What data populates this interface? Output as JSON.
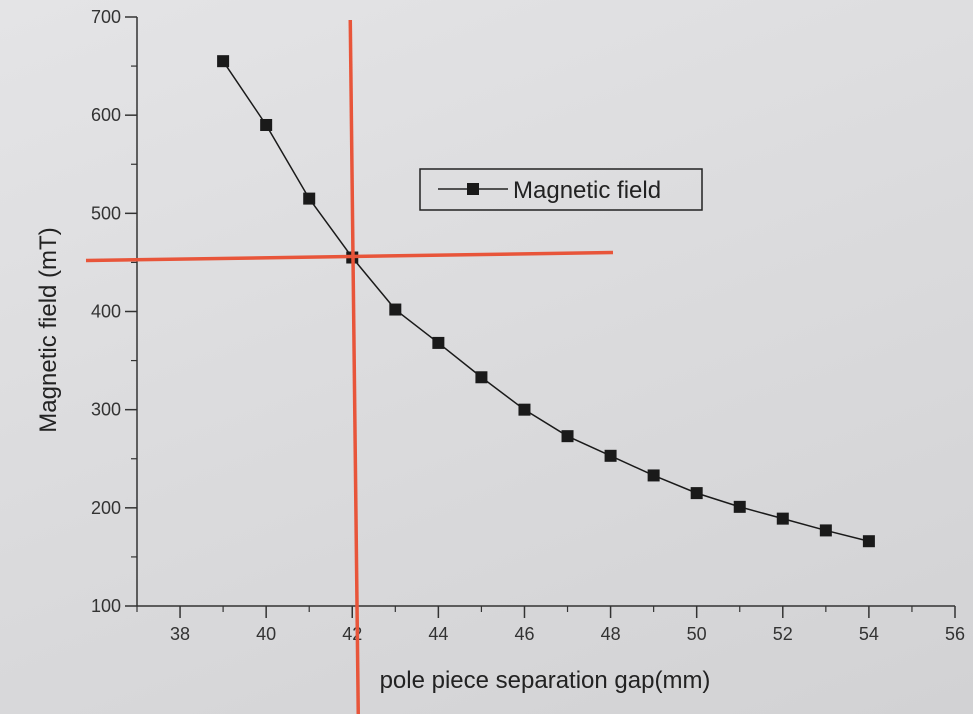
{
  "chart_data": {
    "type": "line",
    "title": "",
    "xlabel": "pole piece separation gap(mm)",
    "ylabel": "Magnetic field (mT)",
    "xlim": [
      37,
      56
    ],
    "ylim": [
      100,
      700
    ],
    "x_ticks": [
      38,
      40,
      42,
      44,
      46,
      48,
      50,
      52,
      54,
      56
    ],
    "y_ticks": [
      100,
      200,
      300,
      400,
      500,
      600,
      700
    ],
    "legend_position": "top-center",
    "grid": false,
    "series": [
      {
        "name": "Magnetic field",
        "color": "#1a1a1a",
        "marker": "square",
        "x": [
          39,
          40,
          41,
          42,
          43,
          44,
          45,
          46,
          47,
          48,
          49,
          50,
          51,
          52,
          53,
          54
        ],
        "y": [
          655,
          590,
          515,
          455,
          402,
          368,
          333,
          300,
          273,
          253,
          233,
          215,
          201,
          189,
          177,
          166
        ]
      }
    ],
    "annotations": {
      "color": "#e8553a",
      "vertical_line_x": 42,
      "horizontal_line_y": 455
    }
  }
}
